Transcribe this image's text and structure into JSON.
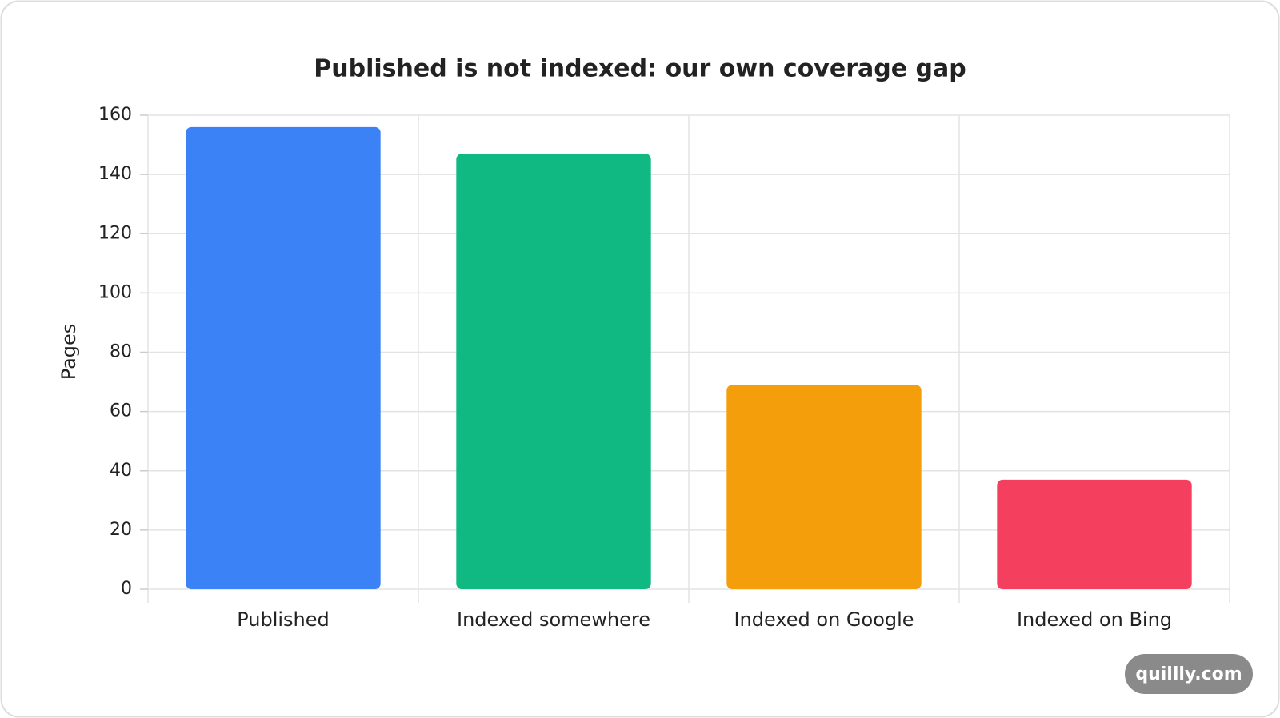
{
  "chart_data": {
    "type": "bar",
    "title": "Published is not indexed: our own coverage gap",
    "y_label": "Pages",
    "categories": [
      "Published",
      "Indexed somewhere",
      "Indexed on Google",
      "Indexed on Bing"
    ],
    "values": [
      156,
      147,
      69,
      37
    ],
    "colors": [
      "#3b82f6",
      "#10b981",
      "#f59e0b",
      "#f43f5e"
    ],
    "ylim": [
      0,
      160
    ],
    "yticks": [
      0,
      20,
      40,
      60,
      80,
      100,
      120,
      140,
      160
    ],
    "grid": true
  },
  "watermark": "quillly.com"
}
